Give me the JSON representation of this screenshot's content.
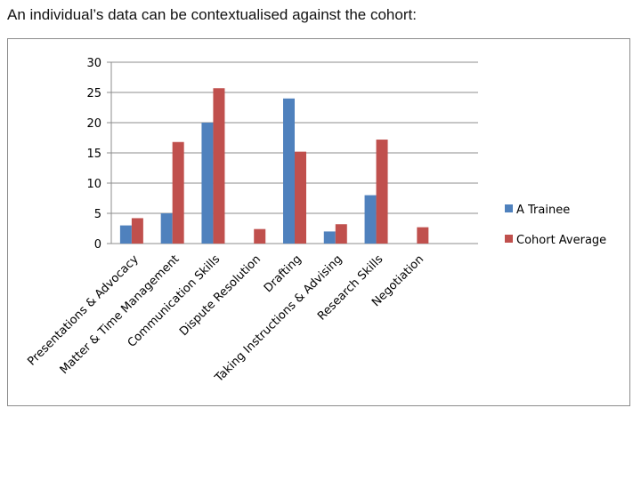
{
  "heading": "An individual’s data can be contextualised against the cohort:",
  "chart_data": {
    "type": "bar",
    "categories": [
      "Presentations & Advocacy",
      "Matter & Time Management",
      "Communication Skills",
      "Dispute Resolution",
      "Drafting",
      "Taking Instructions & Advising",
      "Research Skills",
      "Negotiation"
    ],
    "series": [
      {
        "name": "A Trainee",
        "color": "#4f81bd",
        "values": [
          3,
          5,
          20,
          0,
          24,
          2,
          8,
          0
        ]
      },
      {
        "name": "Cohort Average",
        "color": "#c0504d",
        "values": [
          4.2,
          16.8,
          25.7,
          2.4,
          15.2,
          3.2,
          17.2,
          2.7
        ]
      }
    ],
    "ylim": [
      0,
      30
    ],
    "yticks": [
      0,
      5,
      10,
      15,
      20,
      25,
      30
    ],
    "grid": true,
    "legend": "right",
    "title": "",
    "xlabel": "",
    "ylabel": ""
  }
}
